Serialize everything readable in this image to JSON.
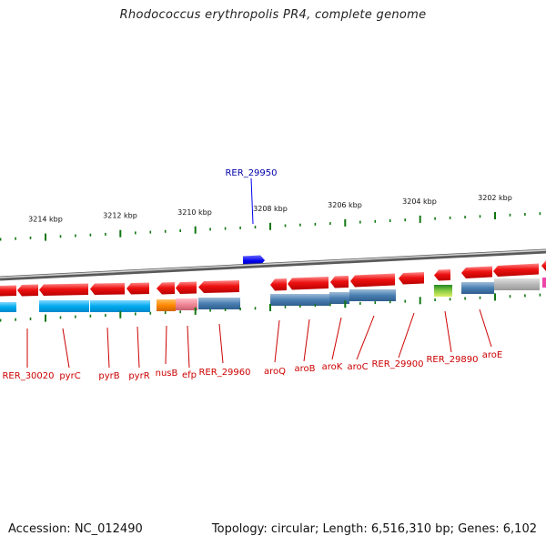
{
  "title": "Rhodococcus erythropolis PR4, complete genome",
  "footer": {
    "accession": "Accession: NC_012490",
    "summary": "Topology: circular; Length: 6,516,310 bp; Genes: 6,102"
  },
  "colors": {
    "gene_red": "#ee1111",
    "label_red": "#cc0000",
    "highlight_blue": "#0000ee",
    "highlight_label": "#0000aa",
    "tick_green": "#117711",
    "backbone_grey": "#888888"
  },
  "ticks": [
    "3214 kbp",
    "3212 kbp",
    "3210 kbp",
    "3208 kbp",
    "3206 kbp",
    "3204 kbp",
    "3202 kbp"
  ],
  "highlight_gene": "RER_29950",
  "gene_labels": [
    "RER_30020",
    "pyrC",
    "pyrB",
    "pyrR",
    "nusB",
    "efp",
    "RER_29960",
    "aroQ",
    "aroB",
    "aroK",
    "aroC",
    "RER_29900",
    "RER_29890",
    "aroE"
  ]
}
